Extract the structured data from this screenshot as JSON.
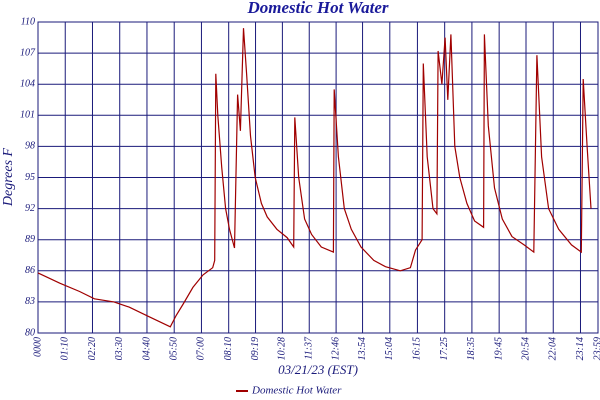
{
  "chart_data": {
    "type": "line",
    "title": "Domestic Hot Water",
    "xlabel": "03/21/23 (EST)",
    "ylabel": "Degrees F",
    "xlim": [
      0,
      1439
    ],
    "ylim": [
      80,
      110
    ],
    "yticks": [
      80,
      83,
      86,
      89,
      92,
      95,
      98,
      101,
      104,
      107,
      110
    ],
    "xticks": [
      {
        "value": 0,
        "label": "0000"
      },
      {
        "value": 70,
        "label": "01:10"
      },
      {
        "value": 140,
        "label": "02:20"
      },
      {
        "value": 210,
        "label": "03:30"
      },
      {
        "value": 280,
        "label": "04:40"
      },
      {
        "value": 350,
        "label": "05:50"
      },
      {
        "value": 420,
        "label": "07:00"
      },
      {
        "value": 490,
        "label": "08:10"
      },
      {
        "value": 559,
        "label": "09:19"
      },
      {
        "value": 628,
        "label": "10:28"
      },
      {
        "value": 697,
        "label": "11:37"
      },
      {
        "value": 766,
        "label": "12:46"
      },
      {
        "value": 834,
        "label": "13:54"
      },
      {
        "value": 904,
        "label": "15:04"
      },
      {
        "value": 975,
        "label": "16:15"
      },
      {
        "value": 1045,
        "label": "17:25"
      },
      {
        "value": 1115,
        "label": "18:35"
      },
      {
        "value": 1185,
        "label": "19:45"
      },
      {
        "value": 1254,
        "label": "20:54"
      },
      {
        "value": 1324,
        "label": "22:04"
      },
      {
        "value": 1394,
        "label": "23:14"
      },
      {
        "value": 1439,
        "label": "23:59"
      }
    ],
    "grid": true,
    "legend": "bottom",
    "series": [
      {
        "name": "Domestic Hot Water",
        "color": "#a00000",
        "x": [
          0,
          56,
          107,
          145,
          195,
          234,
          284,
          340,
          355,
          373,
          398,
          424,
          449,
          454,
          457,
          462,
          472,
          482,
          492,
          505,
          513,
          520,
          528,
          536,
          546,
          558,
          574,
          589,
          614,
          640,
          657,
          660,
          670,
          685,
          703,
          728,
          759,
          761,
          772,
          787,
          805,
          830,
          863,
          893,
          931,
          957,
          970,
          987,
          990,
          1000,
          1015,
          1025,
          1028,
          1038,
          1046,
          1053,
          1061,
          1071,
          1084,
          1102,
          1122,
          1145,
          1147,
          1157,
          1173,
          1193,
          1218,
          1249,
          1274,
          1282,
          1294,
          1312,
          1338,
          1371,
          1396,
          1401,
          1411,
          1421
        ],
        "values": [
          85.8,
          84.8,
          84.0,
          83.3,
          83.0,
          82.5,
          81.6,
          80.6,
          81.7,
          82.8,
          84.4,
          85.6,
          86.3,
          87.0,
          105.0,
          101.0,
          96,
          92,
          90,
          88.2,
          103.0,
          99.5,
          109.4,
          105,
          99,
          95,
          92.5,
          91.2,
          90,
          89.2,
          88.3,
          100.8,
          95,
          91,
          89.5,
          88.3,
          87.8,
          103.5,
          97,
          92,
          90,
          88.3,
          87.0,
          86.4,
          86.0,
          86.3,
          88.0,
          89.0,
          106.0,
          97,
          92,
          91.5,
          107.2,
          104,
          108.5,
          102.5,
          108.8,
          98,
          95,
          92.5,
          90.8,
          90.2,
          108.8,
          100,
          94,
          91,
          89.3,
          88.5,
          87.8,
          106.8,
          97,
          92,
          90,
          88.5,
          87.8,
          104.5,
          98,
          92
        ]
      }
    ]
  }
}
